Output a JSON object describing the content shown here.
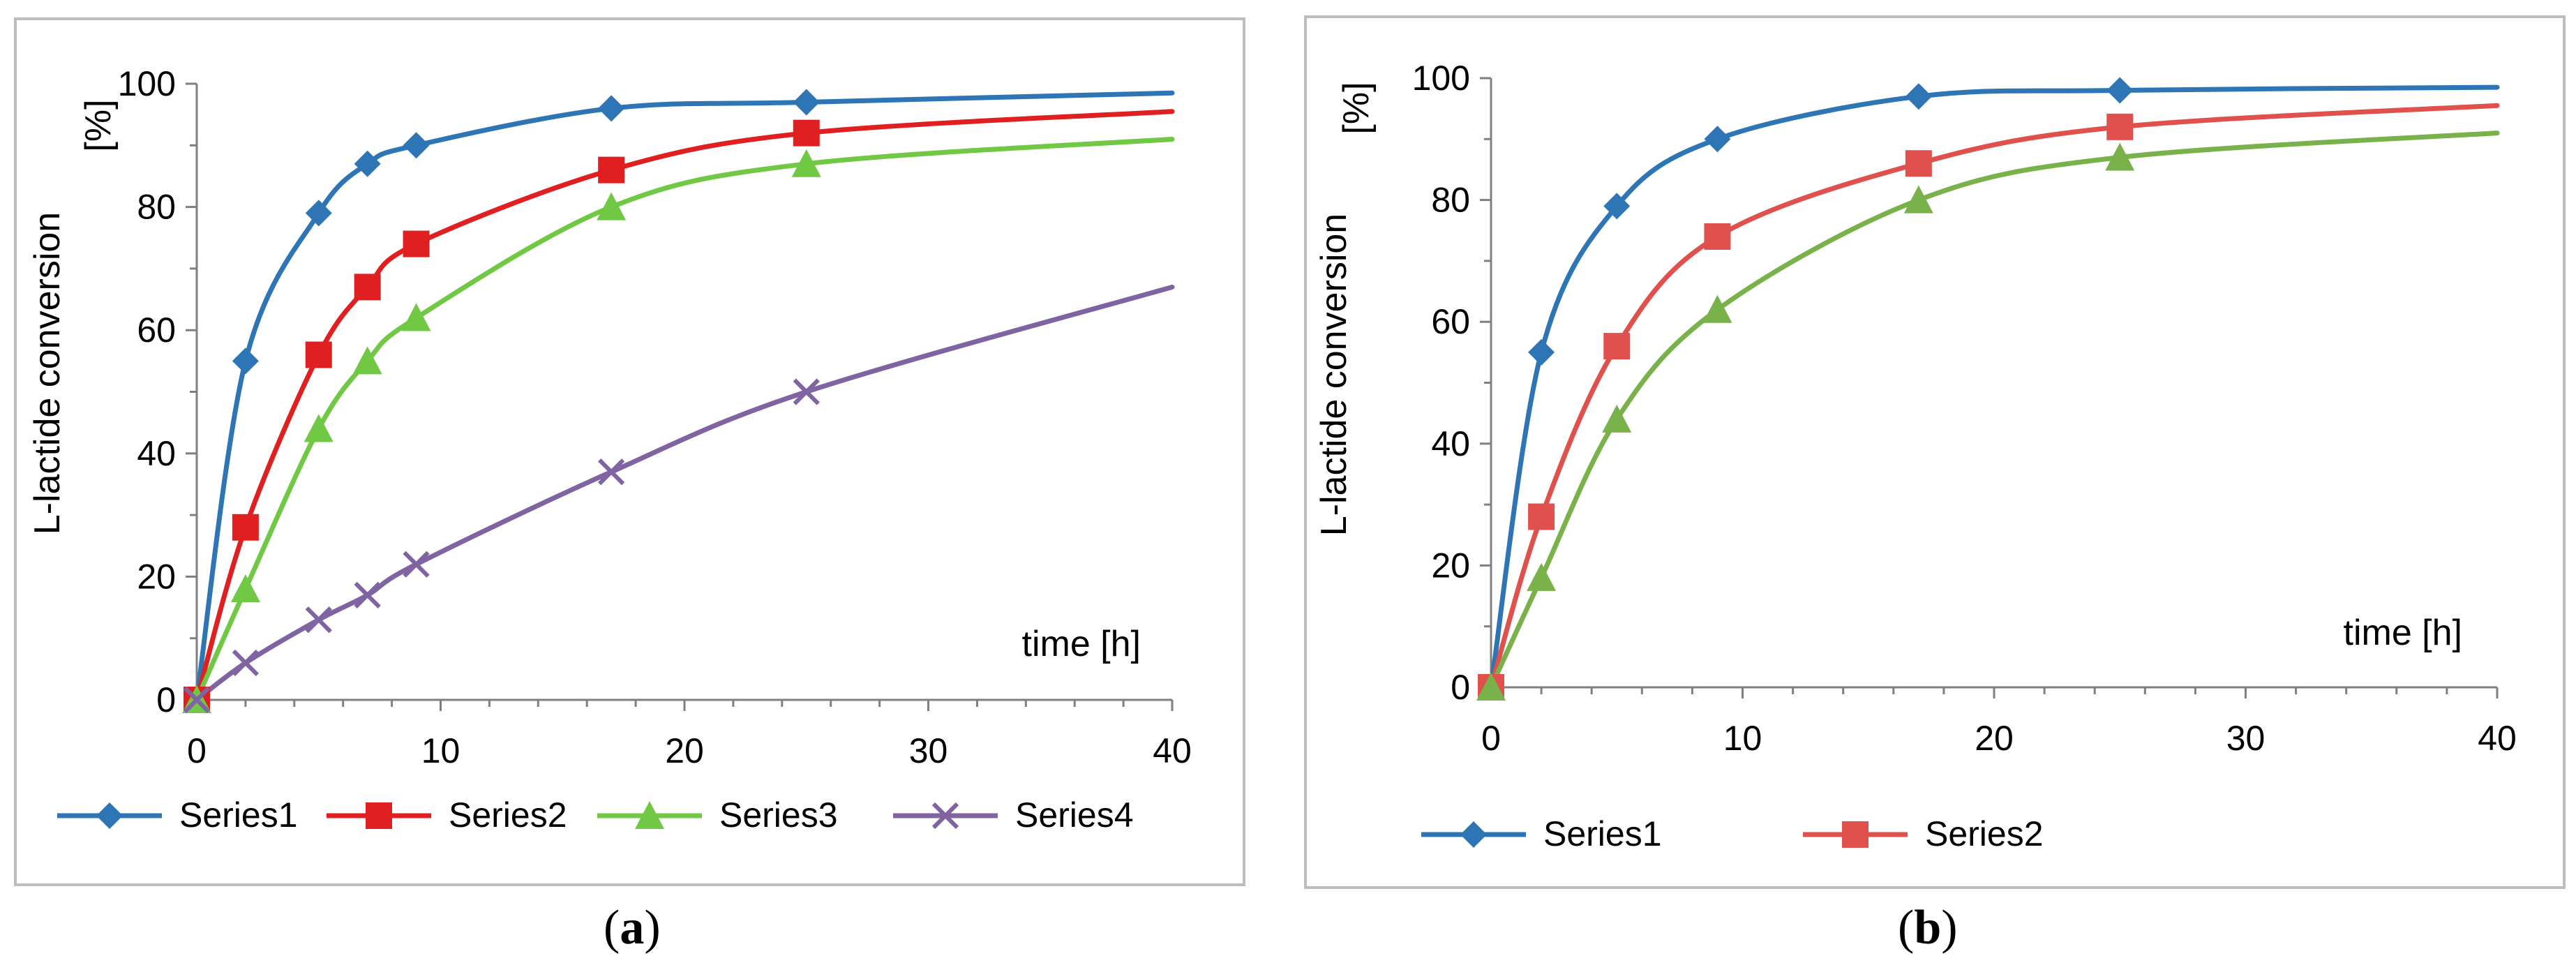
{
  "colors": {
    "Series1": "#2E75B6",
    "Series2": "#E02020",
    "Series3": "#70C844",
    "Series4": "#8064A2",
    "Series2_b": "#E0504C",
    "Series3_b": "#79B24A",
    "axis": "#7f7f7f",
    "frame": "#bdbdbd"
  },
  "panels": {
    "a": {
      "caption_open": "(",
      "caption_letter": "a",
      "caption_close": ")"
    },
    "b": {
      "caption_open": "(",
      "caption_letter": "b",
      "caption_close": ")"
    }
  },
  "chart_data": [
    {
      "type": "line",
      "panel": "a",
      "title": "",
      "xlabel": "time [h]",
      "ylabel": "L-lactide conversion",
      "yunit": "[%]",
      "xlim": [
        0,
        40
      ],
      "ylim": [
        0,
        100
      ],
      "xticks": [
        0,
        10,
        20,
        30,
        40
      ],
      "yticks": [
        0,
        20,
        40,
        60,
        80,
        100
      ],
      "grid": false,
      "legend": "bottom",
      "series": [
        {
          "name": "Series1",
          "marker": "diamond",
          "color": "#2E75B6",
          "points": [
            [
              0,
              0
            ],
            [
              2,
              55
            ],
            [
              5,
              79
            ],
            [
              7,
              87
            ],
            [
              9,
              90
            ],
            [
              17,
              96
            ],
            [
              25,
              97
            ]
          ],
          "curve_end": [
            40,
            98.5
          ]
        },
        {
          "name": "Series2",
          "marker": "square",
          "color": "#E02020",
          "points": [
            [
              0,
              0
            ],
            [
              2,
              28
            ],
            [
              5,
              56
            ],
            [
              7,
              67
            ],
            [
              9,
              74
            ],
            [
              17,
              86
            ],
            [
              25,
              92
            ]
          ],
          "curve_end": [
            40,
            95.5
          ]
        },
        {
          "name": "Series3",
          "marker": "triangle",
          "color": "#70C844",
          "points": [
            [
              0,
              0
            ],
            [
              2,
              18
            ],
            [
              5,
              44
            ],
            [
              7,
              55
            ],
            [
              9,
              62
            ],
            [
              17,
              80
            ],
            [
              25,
              87
            ]
          ],
          "curve_end": [
            40,
            91
          ]
        },
        {
          "name": "Series4",
          "marker": "x",
          "color": "#8064A2",
          "points": [
            [
              0,
              0
            ],
            [
              2,
              6
            ],
            [
              5,
              13
            ],
            [
              7,
              17
            ],
            [
              9,
              22
            ],
            [
              17,
              37
            ],
            [
              25,
              50
            ]
          ],
          "curve_end": [
            40,
            67
          ]
        }
      ]
    },
    {
      "type": "line",
      "panel": "b",
      "title": "",
      "xlabel": "time [h]",
      "ylabel": "L-lactide conversion",
      "yunit": "[%]",
      "xlim": [
        0,
        40
      ],
      "ylim": [
        0,
        100
      ],
      "xticks": [
        0,
        10,
        20,
        30,
        40
      ],
      "yticks": [
        0,
        20,
        40,
        60,
        80,
        100
      ],
      "grid": false,
      "legend": "bottom",
      "series": [
        {
          "name": "Series1",
          "marker": "diamond",
          "color": "#2E75B6",
          "points": [
            [
              0,
              0
            ],
            [
              2,
              55
            ],
            [
              5,
              79
            ],
            [
              9,
              90
            ],
            [
              17,
              97
            ],
            [
              25,
              98
            ]
          ],
          "curve_end": [
            40,
            98.5
          ]
        },
        {
          "name": "Series2",
          "marker": "square",
          "color": "#E0504C",
          "points": [
            [
              0,
              0
            ],
            [
              2,
              28
            ],
            [
              5,
              56
            ],
            [
              9,
              74
            ],
            [
              17,
              86
            ],
            [
              25,
              92
            ]
          ],
          "curve_end": [
            40,
            95.5
          ]
        },
        {
          "name": "",
          "marker": "triangle",
          "color": "#79B24A",
          "points": [
            [
              0,
              0
            ],
            [
              2,
              18
            ],
            [
              5,
              44
            ],
            [
              9,
              62
            ],
            [
              17,
              80
            ],
            [
              25,
              87
            ]
          ],
          "curve_end": [
            40,
            91
          ]
        }
      ]
    }
  ]
}
